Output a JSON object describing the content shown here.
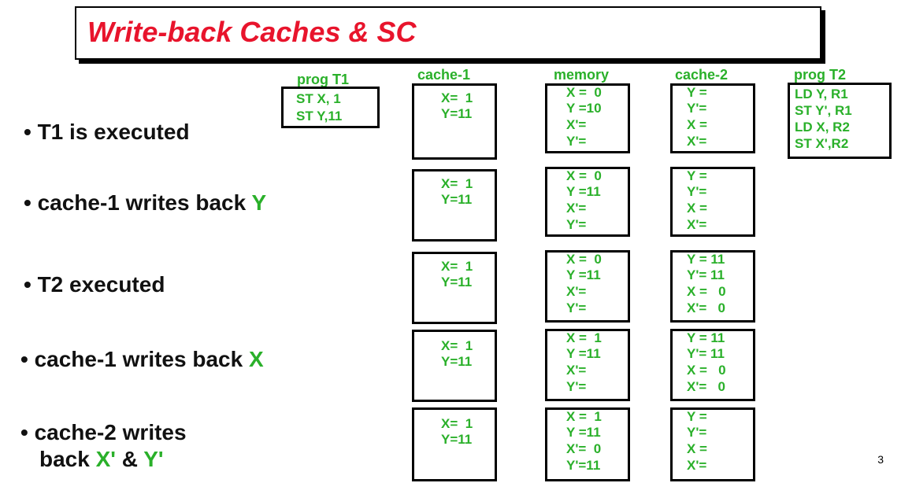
{
  "title": "Write-back Caches & SC",
  "headers": {
    "prog_t1": "prog T1",
    "cache1": "cache-1",
    "memory": "memory",
    "cache2": "cache-2",
    "prog_t2": "prog T2"
  },
  "prog_t1": [
    "ST X, 1",
    "ST Y,11"
  ],
  "prog_t2": [
    "LD Y, R1",
    "ST Y', R1",
    "LD X, R2",
    "ST X',R2"
  ],
  "steps": [
    {
      "label": "• T1 is executed",
      "cache1": [
        "X=  1",
        "Y=11"
      ],
      "memory": [
        "X =  0",
        "Y =10",
        "X'=",
        "Y'="
      ],
      "cache2": [
        "Y =",
        "Y'=",
        "X =",
        "X'="
      ]
    },
    {
      "label": "• cache-1 writes back ",
      "label_hl": "Y",
      "cache1": [
        "X=  1",
        "Y=11"
      ],
      "memory": [
        "X =  0",
        "Y =11",
        "X'=",
        "Y'="
      ],
      "cache2": [
        "Y =",
        "Y'=",
        "X =",
        "X'="
      ]
    },
    {
      "label": "• T2 executed",
      "cache1": [
        "X=  1",
        "Y=11"
      ],
      "memory": [
        "X =  0",
        "Y =11",
        "X'=",
        "Y'="
      ],
      "cache2": [
        "Y = 11",
        "Y'= 11",
        "X =   0",
        "X'=   0"
      ]
    },
    {
      "label": "• cache-1 writes back ",
      "label_hl": "X",
      "cache1": [
        "X=  1",
        "Y=11"
      ],
      "memory": [
        "X =  1",
        "Y =11",
        "X'=",
        "Y'="
      ],
      "cache2": [
        "Y = 11",
        "Y'= 11",
        "X =   0",
        "X'=   0"
      ]
    },
    {
      "label": "• cache-2 writes",
      "label2_pre": "back ",
      "label2_hl1": "X'",
      "label2_mid": " & ",
      "label2_hl2": "Y'",
      "cache1": [
        "X=  1",
        "Y=11"
      ],
      "memory": [
        "X =  1",
        "Y =11",
        "X'=  0",
        "Y'=11"
      ],
      "cache2": [
        "Y =",
        "Y'=",
        "X =",
        "X'="
      ]
    }
  ],
  "page_number": "3",
  "colors": {
    "title": "#e8142c",
    "value_text": "#2ab02a",
    "border": "#000000"
  }
}
